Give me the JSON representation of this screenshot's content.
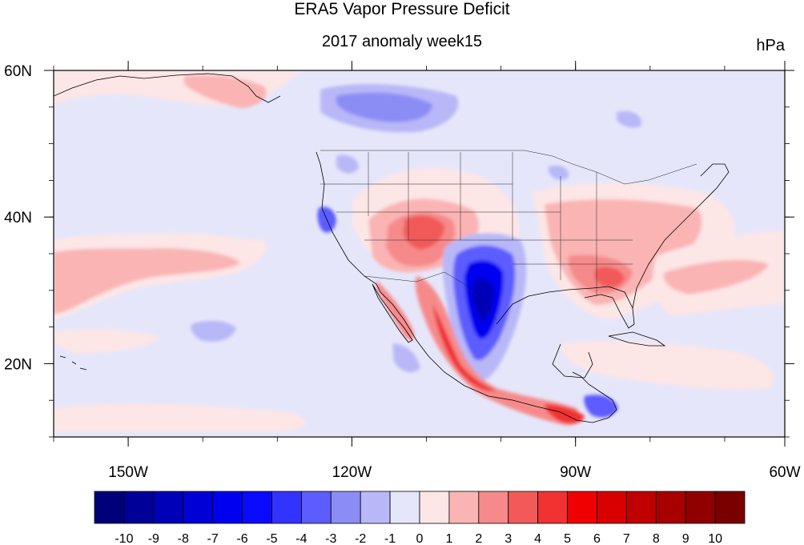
{
  "title": "ERA5 Vapor Pressure Deficit",
  "subtitle": "2017 anomaly week15",
  "units": "hPa",
  "map": {
    "lon_range": [
      -160,
      -60
    ],
    "lat_range": [
      10,
      60
    ],
    "lon_ticks": [
      {
        "value": -150,
        "label": "150W"
      },
      {
        "value": -120,
        "label": "120W"
      },
      {
        "value": -90,
        "label": "90W"
      },
      {
        "value": -60,
        "label": "60W"
      }
    ],
    "lat_ticks": [
      {
        "value": 60,
        "label": "60N"
      },
      {
        "value": 40,
        "label": "40N"
      },
      {
        "value": 20,
        "label": "20N"
      }
    ]
  },
  "colorbar": {
    "labels": [
      "-10",
      "-9",
      "-8",
      "-7",
      "-6",
      "-5",
      "-4",
      "-3",
      "-2",
      "-1",
      "0",
      "1",
      "2",
      "3",
      "4",
      "5",
      "6",
      "7",
      "8",
      "9",
      "10"
    ],
    "colors": [
      "#00007a",
      "#000099",
      "#0000b8",
      "#0000d6",
      "#0000f0",
      "#0a0aff",
      "#3333ff",
      "#5c5cff",
      "#8c8cf5",
      "#b8b8f8",
      "#e6e6fa",
      "#fde6e6",
      "#fab4b4",
      "#f68a8a",
      "#f25a5a",
      "#f03232",
      "#f00000",
      "#d80000",
      "#c00000",
      "#a80000",
      "#900000",
      "#7a0000"
    ]
  },
  "colors": {
    "background_field": "#e6e6fa",
    "weak_positive": "#fde6e6",
    "coast_lines": "#000000"
  }
}
